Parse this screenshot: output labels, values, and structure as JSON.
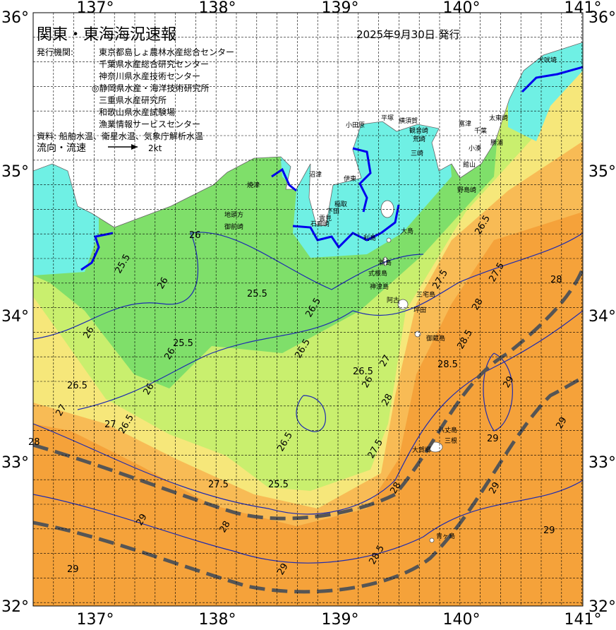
{
  "header": {
    "title": "関東・東海海況速報",
    "date": "2025年9月30日 発行",
    "agency_label": "発行機関:",
    "agencies": [
      "東京都島しょ農林水産総合センター",
      "千葉県水産総合研究センター",
      "神奈川県水産技術センター",
      "◎静岡県水産・海洋技術研究所",
      "三重県水産研究所",
      "和歌山県水産試験場",
      "漁業情報サービスセンター"
    ],
    "source": "資料: 船舶水温、衛星水温、気象庁解析水温",
    "flow_label": "流向・流速",
    "scale_label": "2kt"
  },
  "axes": {
    "lon_labels": [
      "137°",
      "138°",
      "139°",
      "140°",
      "141°"
    ],
    "lat_labels": [
      "36°",
      "35°",
      "34°",
      "33°",
      "32°"
    ]
  },
  "places": [
    "犬吠埼",
    "太東崎",
    "勝浦",
    "小湊",
    "千葉",
    "館山",
    "野島崎",
    "富津",
    "観音崎",
    "横須賀",
    "荒崎",
    "三崎",
    "平塚",
    "小田原",
    "伊東",
    "稲取",
    "下田",
    "石廊崎",
    "雲見",
    "沼津",
    "焼津",
    "地頭方",
    "御前崎",
    "大島",
    "利島",
    "新島",
    "式根島",
    "神津島",
    "三宅島",
    "阿古",
    "坪田",
    "御蔵島",
    "八丈島",
    "大賀郷",
    "三根",
    "青ヶ島"
  ],
  "contours": [
    "26",
    "25.5",
    "26",
    "25.5",
    "26.5",
    "26",
    "25.5",
    "26",
    "26.5",
    "26.5",
    "27",
    "26",
    "26.5",
    "26.5",
    "27.5",
    "28",
    "28",
    "28.5",
    "28.5",
    "29",
    "29",
    "29",
    "28",
    "27.5",
    "27",
    "26.5",
    "27",
    "27.5",
    "28",
    "29",
    "29",
    "28.5",
    "26.5",
    "25.5",
    "26",
    "27.5",
    "28",
    "29",
    "29",
    "29",
    "28"
  ]
}
